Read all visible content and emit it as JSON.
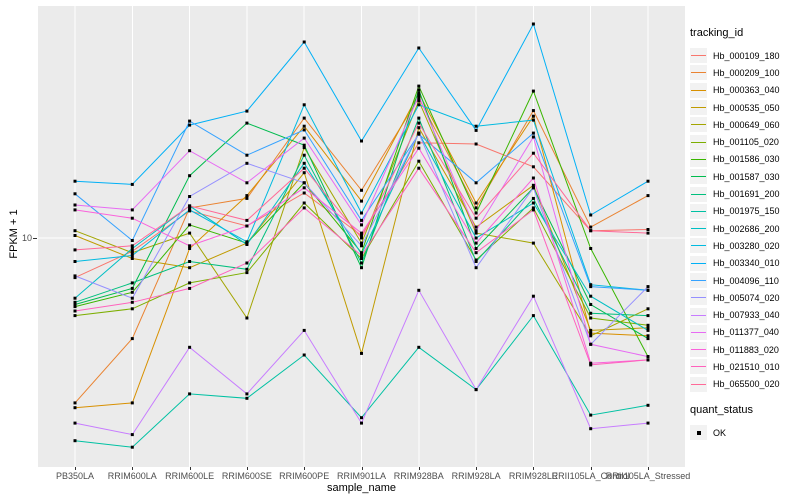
{
  "figure": {
    "y_axis": {
      "title": "FPKM + 1",
      "tick_label": "10",
      "break_value": 10
    },
    "x_axis": {
      "title": "sample_name"
    },
    "legend": {
      "color_title": "tracking_id",
      "shape_title": "quant_status",
      "shape_items": [
        {
          "label": "OK"
        }
      ]
    },
    "colors": {
      "panel_bg": "#EBEBEB",
      "grid": "#FFFFFF",
      "legend_key_bg": "#F2F2F2",
      "axis_text": "#4D4D4D",
      "point": "#000000"
    }
  },
  "chart_data": {
    "type": "line",
    "title": "",
    "xlabel": "sample_name",
    "ylabel": "FPKM + 1",
    "y_scale": "log10",
    "y_breaks": [
      10
    ],
    "ylim": [
      1.6,
      64
    ],
    "grid": true,
    "legend_position": "right",
    "point_shape": "square",
    "point_status_label": "OK",
    "categories": [
      "PB350LA",
      "RRIM600LA",
      "RRIM600LE",
      "RRIM600SE",
      "RRIM600PE",
      "RRIM901LA",
      "RRIM928BA",
      "RRIM928LA",
      "RRIM928LE",
      "RRII105LA_Control",
      "RRII105LA_Stressed"
    ],
    "series": [
      {
        "name": "Hb_000109_180",
        "color": "#F8766D",
        "values": [
          7.3,
          9.0,
          12.4,
          11.0,
          14.3,
          10.2,
          21.3,
          21.1,
          17.6,
          10.6,
          10.7
        ]
      },
      {
        "name": "Hb_000209_100",
        "color": "#EA8331",
        "values": [
          2.7,
          4.5,
          12.7,
          13.7,
          25.9,
          14.6,
          30.4,
          12.7,
          27.5,
          10.9,
          14.0
        ]
      },
      {
        "name": "Hb_000363_040",
        "color": "#D89000",
        "values": [
          2.6,
          2.7,
          9.2,
          14.0,
          24.3,
          13.4,
          31.6,
          13.2,
          26.3,
          4.7,
          4.6
        ]
      },
      {
        "name": "Hb_000535_050",
        "color": "#C09B00",
        "values": [
          10.2,
          8.5,
          7.9,
          9.6,
          16.8,
          4.0,
          24.0,
          10.9,
          15.2,
          4.8,
          4.9
        ]
      },
      {
        "name": "Hb_000649_060",
        "color": "#A3A500",
        "values": [
          10.6,
          8.9,
          10.4,
          5.3,
          20.5,
          9.6,
          29.7,
          10.4,
          9.6,
          4.6,
          5.7
        ]
      },
      {
        "name": "Hb_001105_020",
        "color": "#7CAE00",
        "values": [
          5.4,
          5.7,
          7.0,
          7.6,
          13.2,
          8.5,
          18.4,
          8.4,
          12.7,
          5.3,
          5.0
        ]
      },
      {
        "name": "Hb_001586_030",
        "color": "#39B600",
        "values": [
          5.8,
          6.5,
          11.1,
          9.6,
          15.5,
          8.9,
          33.4,
          12.2,
          32.1,
          9.2,
          3.9
        ]
      },
      {
        "name": "Hb_001587_030",
        "color": "#00BB4E",
        "values": [
          5.9,
          6.7,
          16.4,
          24.9,
          20.9,
          7.9,
          32.4,
          9.2,
          14.9,
          5.9,
          4.5
        ]
      },
      {
        "name": "Hb_001691_200",
        "color": "#00BF7D",
        "values": [
          6.0,
          7.0,
          8.3,
          7.8,
          19.3,
          8.2,
          25.9,
          8.3,
          13.7,
          5.5,
          5.4
        ]
      },
      {
        "name": "Hb_001975_150",
        "color": "#00C1A3",
        "values": [
          2.0,
          1.9,
          2.9,
          2.8,
          3.95,
          2.4,
          4.2,
          3.0,
          5.4,
          2.45,
          2.65
        ]
      },
      {
        "name": "Hb_002686_200",
        "color": "#00BFC4",
        "values": [
          6.2,
          9.2,
          12.9,
          9.5,
          18.1,
          8.8,
          23.0,
          10.0,
          13.2,
          6.3,
          4.8
        ]
      },
      {
        "name": "Hb_003280_020",
        "color": "#00BAE0",
        "values": [
          8.3,
          8.7,
          12.5,
          9.7,
          28.8,
          12.2,
          28.8,
          24.3,
          25.5,
          6.9,
          6.6
        ]
      },
      {
        "name": "Hb_003340_010",
        "color": "#00B0F6",
        "values": [
          15.7,
          15.3,
          24.5,
          27.4,
          47.4,
          21.6,
          45.2,
          23.5,
          54.7,
          12.0,
          15.7
        ]
      },
      {
        "name": "Hb_004096_110",
        "color": "#35A2FF",
        "values": [
          14.2,
          9.8,
          25.3,
          19.3,
          23.6,
          11.5,
          22.8,
          15.5,
          23.0,
          6.8,
          6.6
        ]
      },
      {
        "name": "Hb_005074_020",
        "color": "#9590FF",
        "values": [
          7.4,
          6.2,
          13.9,
          18.1,
          15.5,
          9.4,
          23.0,
          7.9,
          14.9,
          4.3,
          6.8
        ]
      },
      {
        "name": "Hb_007933_040",
        "color": "#C77CFF",
        "values": [
          2.3,
          2.1,
          4.2,
          2.9,
          4.8,
          2.3,
          6.6,
          3.0,
          6.3,
          2.2,
          2.3
        ]
      },
      {
        "name": "Hb_011377_040",
        "color": "#E76BF3",
        "values": [
          13.0,
          12.5,
          20.0,
          15.5,
          22.1,
          11.1,
          30.9,
          10.6,
          22.3,
          4.3,
          3.9
        ]
      },
      {
        "name": "Hb_011883_020",
        "color": "#FA62DB",
        "values": [
          12.5,
          11.7,
          9.4,
          11.0,
          14.9,
          10.4,
          20.4,
          9.6,
          16.1,
          3.7,
          3.8
        ]
      },
      {
        "name": "Hb_021510_010",
        "color": "#FF62BC",
        "values": [
          5.6,
          6.0,
          6.7,
          8.2,
          12.7,
          8.7,
          17.4,
          8.9,
          12.5,
          3.65,
          3.8
        ]
      },
      {
        "name": "Hb_065500_020",
        "color": "#FF6A98",
        "values": [
          9.1,
          9.4,
          12.9,
          11.5,
          17.4,
          10.0,
          24.9,
          11.7,
          19.6,
          10.6,
          10.4
        ]
      }
    ]
  }
}
